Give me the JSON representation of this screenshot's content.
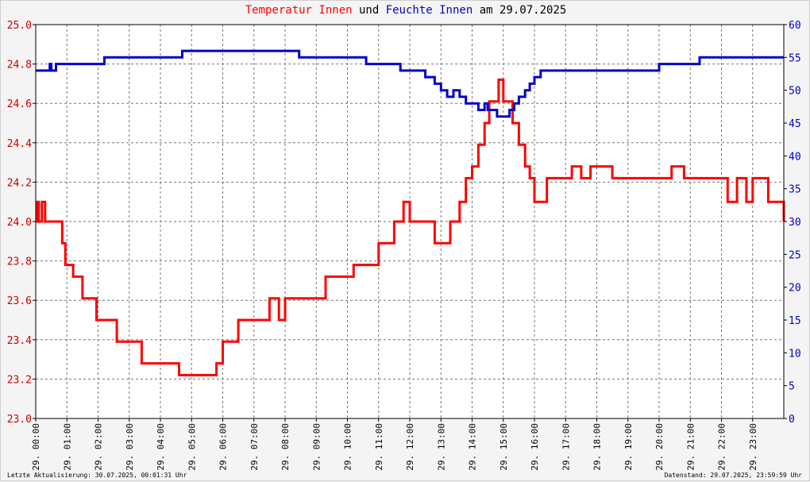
{
  "title": {
    "part1": "Temperatur Innen",
    "part2": " und ",
    "part3": "Feuchte Innen",
    "part4": " am 29.07.2025",
    "color1": "#ff0000",
    "color3": "#0000cc"
  },
  "footer": {
    "left": "Letzte Aktualisierung: 30.07.2025, 00:01:31 Uhr",
    "right": "Datenstand: 29.07.2025, 23:59:59 Uhr"
  },
  "chart_data": {
    "type": "line",
    "title": "Temperatur Innen und Feuchte Innen am 29.07.2025",
    "xlabel": "",
    "ylabel": "",
    "xlim": [
      0,
      24
    ],
    "ylim_left": [
      23.0,
      25.0
    ],
    "ylim_right": [
      0,
      60
    ],
    "y_left_ticks": [
      "23.0",
      "23.2",
      "23.4",
      "23.6",
      "23.8",
      "24.0",
      "24.2",
      "24.4",
      "24.6",
      "24.8",
      "25.0"
    ],
    "y_right_ticks": [
      "0",
      "5",
      "10",
      "15",
      "20",
      "25",
      "30",
      "35",
      "40",
      "45",
      "50",
      "55",
      "60"
    ],
    "x_tick_labels": [
      "29. 00:00",
      "29. 01:00",
      "29. 02:00",
      "29. 03:00",
      "29. 04:00",
      "29. 05:00",
      "29. 06:00",
      "29. 07:00",
      "29. 08:00",
      "29. 09:00",
      "29. 10:00",
      "29. 11:00",
      "29. 12:00",
      "29. 13:00",
      "29. 14:00",
      "29. 15:00",
      "29. 16:00",
      "29. 17:00",
      "29. 18:00",
      "29. 19:00",
      "29. 20:00",
      "29. 21:00",
      "29. 22:00",
      "29. 23:00"
    ],
    "grid": true,
    "series": [
      {
        "name": "Temperatur Innen",
        "axis": "left",
        "color": "#ff0000",
        "x": [
          0.0,
          0.05,
          0.1,
          0.2,
          0.3,
          0.75,
          0.85,
          0.95,
          1.0,
          1.2,
          1.5,
          1.95,
          2.3,
          2.6,
          3.2,
          3.4,
          3.5,
          4.4,
          4.6,
          4.8,
          5.5,
          5.8,
          5.9,
          6.0,
          6.2,
          6.5,
          7.0,
          7.3,
          7.5,
          7.8,
          8.0,
          8.2,
          8.5,
          9.0,
          9.3,
          9.8,
          10.2,
          10.6,
          11.0,
          11.3,
          11.5,
          11.8,
          12.0,
          12.5,
          12.8,
          13.0,
          13.3,
          13.6,
          13.8,
          14.0,
          14.2,
          14.4,
          14.55,
          14.7,
          14.85,
          15.0,
          15.15,
          15.3,
          15.5,
          15.7,
          15.85,
          16.0,
          16.2,
          16.4,
          16.8,
          17.2,
          17.5,
          17.8,
          18.2,
          18.5,
          19.0,
          19.5,
          20.0,
          20.4,
          20.8,
          21.5,
          22.0,
          22.2,
          22.5,
          22.8,
          23.0,
          23.2,
          23.5,
          23.9,
          24.0
        ],
        "y": [
          24.0,
          24.1,
          24.0,
          24.1,
          24.0,
          24.0,
          23.89,
          23.78,
          23.78,
          23.72,
          23.61,
          23.5,
          23.5,
          23.39,
          23.39,
          23.28,
          23.28,
          23.28,
          23.22,
          23.22,
          23.22,
          23.28,
          23.28,
          23.39,
          23.39,
          23.5,
          23.5,
          23.5,
          23.61,
          23.5,
          23.61,
          23.61,
          23.61,
          23.61,
          23.72,
          23.72,
          23.78,
          23.78,
          23.89,
          23.89,
          24.0,
          24.1,
          24.0,
          24.0,
          23.89,
          23.89,
          24.0,
          24.1,
          24.22,
          24.28,
          24.39,
          24.5,
          24.61,
          24.61,
          24.72,
          24.61,
          24.61,
          24.5,
          24.39,
          24.28,
          24.22,
          24.1,
          24.1,
          24.22,
          24.22,
          24.28,
          24.22,
          24.28,
          24.28,
          24.22,
          24.22,
          24.22,
          24.22,
          24.28,
          24.22,
          24.22,
          24.22,
          24.1,
          24.22,
          24.1,
          24.22,
          24.22,
          24.1,
          24.1,
          24.0
        ]
      },
      {
        "name": "Feuchte Innen",
        "axis": "right",
        "color": "#0000cc",
        "x": [
          0.0,
          0.45,
          0.5,
          0.65,
          0.7,
          1.5,
          2.2,
          2.6,
          4.6,
          4.7,
          5.5,
          7.5,
          8.3,
          8.45,
          10.0,
          10.5,
          10.6,
          11.5,
          11.7,
          12.3,
          12.5,
          12.8,
          13.0,
          13.2,
          13.4,
          13.6,
          13.8,
          14.0,
          14.2,
          14.4,
          14.5,
          14.8,
          15.0,
          15.2,
          15.35,
          15.5,
          15.7,
          15.85,
          16.0,
          16.2,
          17.0,
          19.5,
          20.0,
          21.0,
          21.3,
          23.0,
          24.0
        ],
        "y": [
          53,
          54,
          53,
          54,
          54,
          54,
          55,
          55,
          55,
          56,
          56,
          56,
          56,
          55,
          55,
          55,
          54,
          54,
          53,
          53,
          52,
          51,
          50,
          49,
          50,
          49,
          48,
          48,
          47,
          48,
          47,
          46,
          46,
          47,
          48,
          49,
          50,
          51,
          52,
          53,
          53,
          53,
          54,
          54,
          55,
          55,
          55
        ]
      }
    ]
  }
}
